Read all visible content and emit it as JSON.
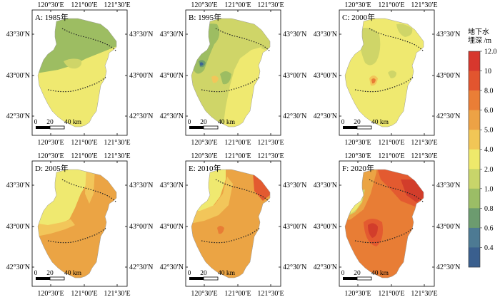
{
  "panels": [
    {
      "label": "A: 1985年"
    },
    {
      "label": "B: 1995年"
    },
    {
      "label": "C: 2000年"
    },
    {
      "label": "D: 2005年"
    },
    {
      "label": "E: 2010年"
    },
    {
      "label": "F: 2020年"
    }
  ],
  "axes": {
    "top_ticks": [
      "120°30′E",
      "121°00′E",
      "121°30′E"
    ],
    "bottom_ticks": [
      "120°30′E",
      "121°00′E",
      "121°30′E"
    ],
    "left_ticks": [
      "43°30′N",
      "43°00′N",
      "42°30′N"
    ],
    "right_ticks": [
      "43°30′N",
      "43°00′N",
      "42°30′N"
    ]
  },
  "scalebar": {
    "labels": [
      "0",
      "20",
      "40 km"
    ]
  },
  "legend": {
    "title_line1": "地下水",
    "title_line2": "埋深 /m",
    "values": [
      "12.0",
      "10",
      "8.0",
      "6.0",
      "5.0",
      "4.0",
      "2.0",
      "1.0",
      "0.8",
      "0.6",
      "0.4"
    ],
    "colors": [
      "#d7372d",
      "#e2552f",
      "#ea7e36",
      "#eda245",
      "#f1c656",
      "#eee96b",
      "#c8d56a",
      "#9bbd66",
      "#6c9b6f",
      "#4d7a93",
      "#3a5f8e"
    ]
  },
  "colors": {
    "deep_blue": "#3d6594",
    "dark_green": "#6e9c6e",
    "green": "#9dbd62",
    "yellow_green": "#cfd568",
    "yellow": "#efe970",
    "light_orange": "#f2c65a",
    "orange": "#eba444",
    "dark_orange": "#e87d35",
    "red_orange": "#e35a30",
    "red": "#d23d2b"
  }
}
